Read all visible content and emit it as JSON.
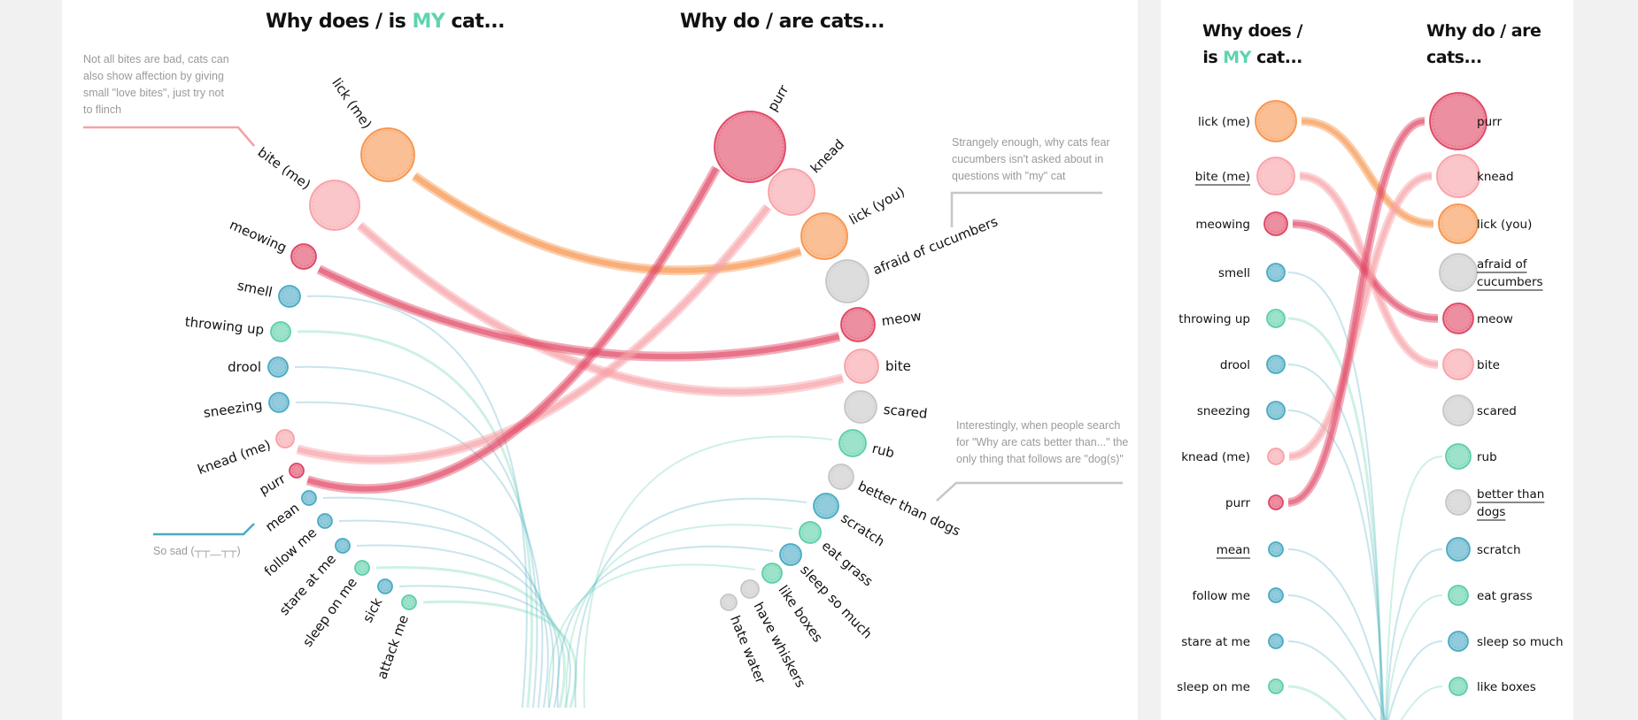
{
  "colors": {
    "orange": "#f7944c",
    "pink": "#f7a0a6",
    "red": "#e04563",
    "blue": "#4aaac4",
    "green": "#5ccfa6",
    "gray": "#c6c6c6",
    "accent": "#5fd3b0"
  },
  "main": {
    "title_left": {
      "pre": "Why does / is ",
      "accent": "MY",
      "post": " cat..."
    },
    "title_right": "Why do / are cats...",
    "left_nodes": [
      {
        "label": "lick (me)",
        "color": "orange"
      },
      {
        "label": "bite (me)",
        "color": "pink"
      },
      {
        "label": "meowing",
        "color": "red"
      },
      {
        "label": "smell",
        "color": "blue"
      },
      {
        "label": "throwing up",
        "color": "green"
      },
      {
        "label": "drool",
        "color": "blue"
      },
      {
        "label": "sneezing",
        "color": "blue"
      },
      {
        "label": "knead (me)",
        "color": "pink"
      },
      {
        "label": "purr",
        "color": "red"
      },
      {
        "label": "mean",
        "color": "blue"
      },
      {
        "label": "follow me",
        "color": "blue"
      },
      {
        "label": "stare at me",
        "color": "blue"
      },
      {
        "label": "sleep on me",
        "color": "green"
      },
      {
        "label": "sick",
        "color": "blue"
      },
      {
        "label": "attack me",
        "color": "green"
      }
    ],
    "right_nodes": [
      {
        "label": "purr",
        "color": "red"
      },
      {
        "label": "knead",
        "color": "pink"
      },
      {
        "label": "lick (you)",
        "color": "orange"
      },
      {
        "label": "afraid of cucumbers",
        "color": "gray"
      },
      {
        "label": "meow",
        "color": "red"
      },
      {
        "label": "bite",
        "color": "pink"
      },
      {
        "label": "scared",
        "color": "gray"
      },
      {
        "label": "rub",
        "color": "green"
      },
      {
        "label": "better than dogs",
        "color": "gray"
      },
      {
        "label": "scratch",
        "color": "blue"
      },
      {
        "label": "eat grass",
        "color": "green"
      },
      {
        "label": "sleep so much",
        "color": "blue"
      },
      {
        "label": "like boxes",
        "color": "green"
      },
      {
        "label": "have whiskers",
        "color": "gray"
      },
      {
        "label": "hate water",
        "color": "gray"
      }
    ],
    "links": [
      {
        "from": "lick (me)",
        "to": "lick (you)",
        "color": "orange"
      },
      {
        "from": "bite (me)",
        "to": "bite",
        "color": "pink"
      },
      {
        "from": "meowing",
        "to": "meow",
        "color": "red"
      },
      {
        "from": "knead (me)",
        "to": "knead",
        "color": "pink"
      },
      {
        "from": "purr",
        "to": "purr",
        "color": "red"
      }
    ],
    "annotations": {
      "bites": "Not all bites are bad, cats can also show affection by giving small \"love bites\", just try not to flinch",
      "cucumbers": "Strangely enough, why cats fear cucumbers isn't asked about in questions with \"my\" cat",
      "dogs": "Interestingly, when people search for \"Why are cats better than...\" the only thing that follows are \"dog(s)\"",
      "sad": "So sad (┬┬﹏┬┬)"
    }
  },
  "compact": {
    "title_left": {
      "line1": "Why does /",
      "pre": "is ",
      "accent": "MY",
      "post": " cat..."
    },
    "title_right": {
      "line1": "Why do / are",
      "line2": "cats..."
    },
    "left_nodes": [
      {
        "lines": [
          "lick (me)"
        ],
        "color": "orange",
        "underline": false
      },
      {
        "lines": [
          "bite (me)"
        ],
        "color": "pink",
        "underline": true
      },
      {
        "lines": [
          "meowing"
        ],
        "color": "red",
        "underline": false
      },
      {
        "lines": [
          "smell"
        ],
        "color": "blue",
        "underline": false
      },
      {
        "lines": [
          "throwing up"
        ],
        "color": "green",
        "underline": false
      },
      {
        "lines": [
          "drool"
        ],
        "color": "blue",
        "underline": false
      },
      {
        "lines": [
          "sneezing"
        ],
        "color": "blue",
        "underline": false
      },
      {
        "lines": [
          "knead (me)"
        ],
        "color": "pink",
        "underline": false
      },
      {
        "lines": [
          "purr"
        ],
        "color": "red",
        "underline": false
      },
      {
        "lines": [
          "mean"
        ],
        "color": "blue",
        "underline": true
      },
      {
        "lines": [
          "follow me"
        ],
        "color": "blue",
        "underline": false
      },
      {
        "lines": [
          "stare at me"
        ],
        "color": "blue",
        "underline": false
      },
      {
        "lines": [
          "sleep on me"
        ],
        "color": "green",
        "underline": false
      }
    ],
    "right_nodes": [
      {
        "lines": [
          "purr"
        ],
        "color": "red",
        "underline": false
      },
      {
        "lines": [
          "knead"
        ],
        "color": "pink",
        "underline": false
      },
      {
        "lines": [
          "lick (you)"
        ],
        "color": "orange",
        "underline": false
      },
      {
        "lines": [
          "afraid of",
          "cucumbers"
        ],
        "color": "gray",
        "underline": true
      },
      {
        "lines": [
          "meow"
        ],
        "color": "red",
        "underline": false
      },
      {
        "lines": [
          "bite"
        ],
        "color": "pink",
        "underline": false
      },
      {
        "lines": [
          "scared"
        ],
        "color": "gray",
        "underline": false
      },
      {
        "lines": [
          "rub"
        ],
        "color": "green",
        "underline": false
      },
      {
        "lines": [
          "better than",
          "dogs"
        ],
        "color": "gray",
        "underline": true
      },
      {
        "lines": [
          "scratch"
        ],
        "color": "blue",
        "underline": false
      },
      {
        "lines": [
          "eat grass"
        ],
        "color": "green",
        "underline": false
      },
      {
        "lines": [
          "sleep so much"
        ],
        "color": "blue",
        "underline": false
      },
      {
        "lines": [
          "like boxes"
        ],
        "color": "green",
        "underline": false
      }
    ]
  }
}
